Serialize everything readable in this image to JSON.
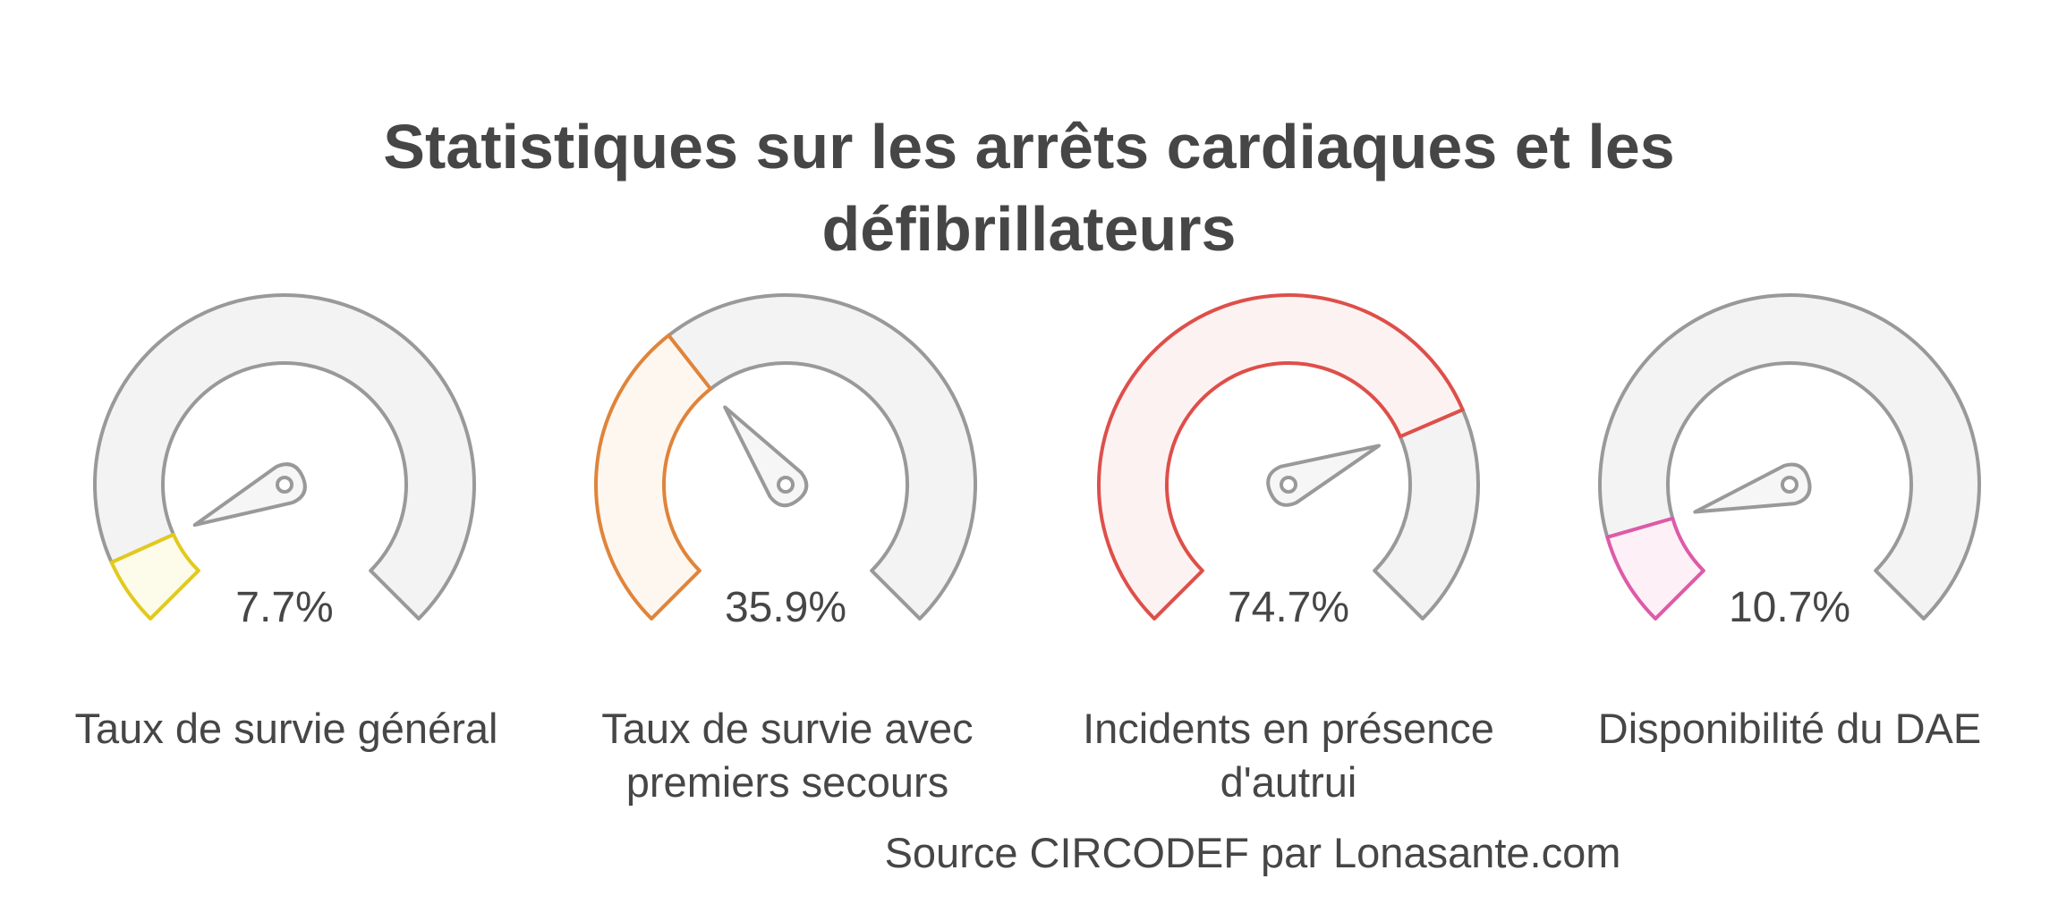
{
  "title": {
    "line1": "Statistiques sur les arrêts cardiaques et les",
    "line2": "défibrillateurs"
  },
  "chart_data": {
    "type": "gauge",
    "title": "Statistiques sur les arrêts cardiaques et les défibrillateurs",
    "range": [
      0,
      100
    ],
    "unit": "%",
    "gauges": [
      {
        "value": 7.7,
        "value_label": "7.7%",
        "label_lines": [
          "Taux de survie général"
        ],
        "color": "#e2c91e",
        "fill": "#fdfbea"
      },
      {
        "value": 35.9,
        "value_label": "35.9%",
        "label_lines": [
          "Taux de survie avec",
          "premiers secours"
        ],
        "color": "#e0843a",
        "fill": "#fef7f0"
      },
      {
        "value": 74.7,
        "value_label": "74.7%",
        "label_lines": [
          "Incidents en présence",
          "d'autrui"
        ],
        "color": "#de4f4a",
        "fill": "#fdf2f2"
      },
      {
        "value": 10.7,
        "value_label": "10.7%",
        "label_lines": [
          "Disponibilité du DAE"
        ],
        "color": "#de5aa8",
        "fill": "#fdf0f7"
      }
    ],
    "track_color": "#f3f3f3",
    "outline_color": "#999999"
  },
  "source": "Source CIRCODEF par Lonasante.com"
}
